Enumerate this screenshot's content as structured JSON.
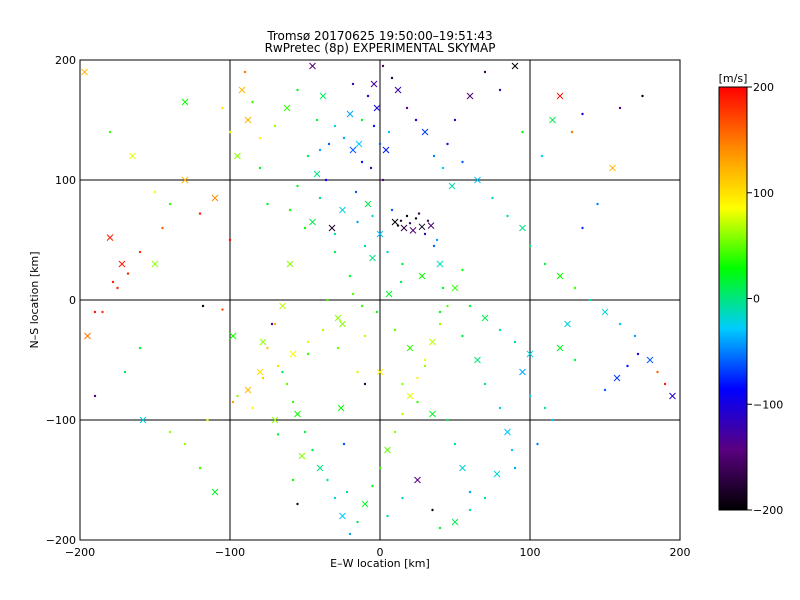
{
  "chart_data": {
    "type": "scatter",
    "title": "Tromsø 20170625 19:50:00–19:51:43",
    "subtitle": "RwPretec (8p) EXPERIMENTAL SKYMAP",
    "xlabel": "E–W location [km]",
    "ylabel": "N–S location [km]",
    "xlim": [
      -200,
      200
    ],
    "ylim": [
      -200,
      200
    ],
    "x_ticks": [
      -200,
      -100,
      0,
      100,
      200
    ],
    "y_ticks": [
      -200,
      -100,
      0,
      100,
      200
    ],
    "x_tick_labels": [
      "−200",
      "−100",
      "0",
      "100",
      "200"
    ],
    "y_tick_labels": [
      "−200",
      "−100",
      "0",
      "100",
      "200"
    ],
    "grid": true,
    "colorbar": {
      "unit": "[m/s]",
      "range": [
        -200,
        200
      ],
      "ticks": [
        200,
        100,
        0,
        -100,
        -200
      ],
      "tick_labels": [
        "200",
        "100",
        "0",
        "−100",
        "−200"
      ],
      "colors": [
        "#000000",
        "#5a0080",
        "#0000ff",
        "#00ccff",
        "#00ff00",
        "#ffff00",
        "#ff8800",
        "#ff0000"
      ]
    },
    "markers": [
      "x",
      "dot"
    ],
    "points": [
      [
        -197,
        190,
        120
      ],
      [
        -190,
        -80,
        -150
      ],
      [
        -185,
        -10,
        180
      ],
      [
        -180,
        52,
        190
      ],
      [
        -178,
        15,
        190
      ],
      [
        -175,
        10,
        185
      ],
      [
        -172,
        30,
        190
      ],
      [
        -168,
        22,
        185
      ],
      [
        -160,
        40,
        180
      ],
      [
        -158,
        -100,
        -20
      ],
      [
        -150,
        90,
        90
      ],
      [
        -140,
        -110,
        60
      ],
      [
        -130,
        165,
        30
      ],
      [
        -120,
        72,
        190
      ],
      [
        -118,
        -5,
        -200
      ],
      [
        -110,
        85,
        140
      ],
      [
        -105,
        -8,
        170
      ],
      [
        -100,
        50,
        200
      ],
      [
        -98,
        -30,
        30
      ],
      [
        -95,
        -80,
        60
      ],
      [
        -90,
        190,
        150
      ],
      [
        -88,
        150,
        120
      ],
      [
        -85,
        165,
        40
      ],
      [
        -80,
        110,
        20
      ],
      [
        -78,
        -35,
        60
      ],
      [
        -75,
        80,
        20
      ],
      [
        -72,
        -20,
        -130
      ],
      [
        -70,
        -100,
        60
      ],
      [
        -68,
        -112,
        20
      ],
      [
        -65,
        -60,
        10
      ],
      [
        -60,
        30,
        60
      ],
      [
        -58,
        -150,
        30
      ],
      [
        -55,
        -170,
        -180
      ],
      [
        -52,
        -130,
        60
      ],
      [
        -50,
        60,
        30
      ],
      [
        -48,
        -45,
        40
      ],
      [
        -45,
        195,
        -150
      ],
      [
        -42,
        150,
        20
      ],
      [
        -40,
        125,
        -40
      ],
      [
        -38,
        170,
        10
      ],
      [
        -36,
        100,
        -90
      ],
      [
        -34,
        130,
        -60
      ],
      [
        -32,
        60,
        -180
      ],
      [
        -30,
        40,
        10
      ],
      [
        -28,
        -40,
        50
      ],
      [
        -26,
        -90,
        30
      ],
      [
        -24,
        -120,
        -60
      ],
      [
        -22,
        -160,
        -10
      ],
      [
        -20,
        155,
        -40
      ],
      [
        -18,
        180,
        -120
      ],
      [
        -16,
        90,
        -60
      ],
      [
        -14,
        130,
        -30
      ],
      [
        -12,
        150,
        20
      ],
      [
        -10,
        -70,
        -170
      ],
      [
        -8,
        80,
        10
      ],
      [
        -6,
        110,
        -120
      ],
      [
        -4,
        145,
        -80
      ],
      [
        -2,
        160,
        -100
      ],
      [
        0,
        130,
        -60
      ],
      [
        2,
        100,
        -150
      ],
      [
        4,
        125,
        -80
      ],
      [
        6,
        140,
        -30
      ],
      [
        8,
        75,
        -60
      ],
      [
        10,
        65,
        -200
      ],
      [
        12,
        62,
        -190
      ],
      [
        14,
        66,
        -180
      ],
      [
        16,
        60,
        -170
      ],
      [
        18,
        70,
        -200
      ],
      [
        20,
        64,
        -160
      ],
      [
        22,
        58,
        -150
      ],
      [
        24,
        68,
        -200
      ],
      [
        26,
        72,
        -170
      ],
      [
        28,
        61,
        -190
      ],
      [
        30,
        55,
        -120
      ],
      [
        32,
        66,
        -160
      ],
      [
        34,
        62,
        -150
      ],
      [
        36,
        45,
        -60
      ],
      [
        38,
        50,
        -40
      ],
      [
        40,
        30,
        -10
      ],
      [
        42,
        10,
        20
      ],
      [
        14,
        15,
        10
      ],
      [
        6,
        5,
        20
      ],
      [
        -2,
        -10,
        30
      ],
      [
        10,
        -25,
        50
      ],
      [
        20,
        -40,
        40
      ],
      [
        30,
        -55,
        60
      ],
      [
        -10,
        -30,
        70
      ],
      [
        0,
        -60,
        90
      ],
      [
        15,
        -70,
        60
      ],
      [
        25,
        -85,
        40
      ],
      [
        35,
        -95,
        20
      ],
      [
        45,
        -100,
        10
      ],
      [
        50,
        -120,
        0
      ],
      [
        55,
        -140,
        -20
      ],
      [
        60,
        -160,
        -40
      ],
      [
        -15,
        -60,
        80
      ],
      [
        -25,
        -20,
        60
      ],
      [
        -35,
        0,
        40
      ],
      [
        -20,
        20,
        20
      ],
      [
        -5,
        35,
        0
      ],
      [
        5,
        40,
        -20
      ],
      [
        15,
        30,
        10
      ],
      [
        28,
        20,
        30
      ],
      [
        40,
        -10,
        20
      ],
      [
        55,
        -30,
        10
      ],
      [
        65,
        -50,
        0
      ],
      [
        70,
        -70,
        -10
      ],
      [
        80,
        -90,
        -20
      ],
      [
        85,
        -110,
        -30
      ],
      [
        90,
        -140,
        -40
      ],
      [
        50,
        150,
        -100
      ],
      [
        60,
        170,
        -150
      ],
      [
        70,
        190,
        -160
      ],
      [
        80,
        175,
        -120
      ],
      [
        90,
        195,
        -200
      ],
      [
        45,
        130,
        -80
      ],
      [
        55,
        115,
        -60
      ],
      [
        65,
        100,
        -30
      ],
      [
        75,
        85,
        -20
      ],
      [
        85,
        70,
        -10
      ],
      [
        95,
        60,
        0
      ],
      [
        100,
        45,
        10
      ],
      [
        110,
        30,
        20
      ],
      [
        120,
        20,
        30
      ],
      [
        130,
        10,
        40
      ],
      [
        140,
        0,
        -10
      ],
      [
        150,
        -10,
        -20
      ],
      [
        160,
        -20,
        -30
      ],
      [
        170,
        -30,
        -40
      ],
      [
        180,
        -50,
        -60
      ],
      [
        185,
        -60,
        160
      ],
      [
        190,
        -70,
        190
      ],
      [
        195,
        -80,
        -110
      ],
      [
        172,
        -45,
        -110
      ],
      [
        165,
        -55,
        -80
      ],
      [
        158,
        -65,
        -70
      ],
      [
        150,
        -75,
        -60
      ],
      [
        130,
        -50,
        10
      ],
      [
        120,
        -40,
        20
      ],
      [
        110,
        -90,
        -10
      ],
      [
        100,
        -80,
        -20
      ],
      [
        95,
        -60,
        -40
      ],
      [
        105,
        -120,
        -50
      ],
      [
        115,
        -100,
        -30
      ],
      [
        125,
        -20,
        -20
      ],
      [
        135,
        60,
        -70
      ],
      [
        145,
        80,
        -50
      ],
      [
        155,
        110,
        120
      ],
      [
        160,
        160,
        -130
      ],
      [
        175,
        170,
        -200
      ],
      [
        120,
        170,
        190
      ],
      [
        128,
        140,
        150
      ],
      [
        135,
        155,
        -110
      ],
      [
        115,
        150,
        10
      ],
      [
        95,
        140,
        30
      ],
      [
        108,
        120,
        -20
      ],
      [
        -130,
        100,
        120
      ],
      [
        -140,
        80,
        40
      ],
      [
        -145,
        60,
        160
      ],
      [
        -150,
        30,
        60
      ],
      [
        -160,
        -40,
        20
      ],
      [
        -170,
        -60,
        10
      ],
      [
        -165,
        120,
        80
      ],
      [
        -180,
        140,
        40
      ],
      [
        -190,
        -10,
        190
      ],
      [
        -195,
        -30,
        150
      ],
      [
        -130,
        -120,
        60
      ],
      [
        -120,
        -140,
        40
      ],
      [
        -110,
        -160,
        20
      ],
      [
        -115,
        -100,
        80
      ],
      [
        -85,
        -90,
        90
      ],
      [
        -80,
        -60,
        100
      ],
      [
        -75,
        -40,
        110
      ],
      [
        -70,
        -20,
        120
      ],
      [
        -65,
        -5,
        70
      ],
      [
        -62,
        -70,
        50
      ],
      [
        -58,
        -85,
        40
      ],
      [
        -55,
        -95,
        30
      ],
      [
        -50,
        -110,
        20
      ],
      [
        -45,
        -125,
        10
      ],
      [
        -40,
        -140,
        0
      ],
      [
        -35,
        -150,
        -10
      ],
      [
        -30,
        -165,
        -20
      ],
      [
        -25,
        -180,
        -30
      ],
      [
        -20,
        -195,
        -40
      ],
      [
        -15,
        -185,
        10
      ],
      [
        -10,
        -170,
        20
      ],
      [
        -5,
        -155,
        30
      ],
      [
        0,
        -140,
        40
      ],
      [
        5,
        -125,
        50
      ],
      [
        10,
        -110,
        60
      ],
      [
        15,
        -95,
        70
      ],
      [
        20,
        -80,
        80
      ],
      [
        25,
        -65,
        90
      ],
      [
        30,
        -50,
        80
      ],
      [
        35,
        -35,
        70
      ],
      [
        40,
        -20,
        60
      ],
      [
        45,
        -5,
        50
      ],
      [
        50,
        10,
        40
      ],
      [
        55,
        25,
        30
      ],
      [
        -5,
        70,
        -20
      ],
      [
        0,
        55,
        -30
      ],
      [
        -10,
        45,
        -10
      ],
      [
        -15,
        65,
        -40
      ],
      [
        -25,
        75,
        -20
      ],
      [
        -30,
        55,
        -10
      ],
      [
        -40,
        85,
        0
      ],
      [
        -45,
        65,
        10
      ],
      [
        -55,
        95,
        20
      ],
      [
        -60,
        75,
        30
      ],
      [
        -95,
        120,
        60
      ],
      [
        -100,
        140,
        80
      ],
      [
        -105,
        160,
        100
      ],
      [
        -92,
        175,
        120
      ],
      [
        -80,
        135,
        90
      ],
      [
        -70,
        145,
        60
      ],
      [
        -62,
        160,
        40
      ],
      [
        -55,
        175,
        20
      ],
      [
        -48,
        120,
        10
      ],
      [
        -42,
        105,
        0
      ],
      [
        -30,
        145,
        -20
      ],
      [
        -24,
        135,
        -40
      ],
      [
        -18,
        125,
        -60
      ],
      [
        -12,
        115,
        -80
      ],
      [
        -8,
        170,
        -100
      ],
      [
        -4,
        180,
        -130
      ],
      [
        2,
        195,
        -160
      ],
      [
        8,
        185,
        -180
      ],
      [
        12,
        175,
        -120
      ],
      [
        18,
        160,
        -140
      ],
      [
        24,
        150,
        -90
      ],
      [
        30,
        140,
        -70
      ],
      [
        36,
        120,
        -50
      ],
      [
        42,
        110,
        -30
      ],
      [
        48,
        95,
        -10
      ],
      [
        -12,
        -5,
        40
      ],
      [
        -18,
        5,
        50
      ],
      [
        -28,
        -15,
        60
      ],
      [
        -38,
        -25,
        70
      ],
      [
        -48,
        -35,
        80
      ],
      [
        -58,
        -45,
        90
      ],
      [
        -68,
        -55,
        100
      ],
      [
        -78,
        -65,
        110
      ],
      [
        -88,
        -75,
        120
      ],
      [
        -98,
        -85,
        130
      ],
      [
        60,
        -5,
        20
      ],
      [
        70,
        -15,
        10
      ],
      [
        80,
        -25,
        0
      ],
      [
        90,
        -35,
        -10
      ],
      [
        100,
        -45,
        -20
      ],
      [
        5,
        -180,
        -10
      ],
      [
        15,
        -165,
        -20
      ],
      [
        25,
        -150,
        -140
      ],
      [
        35,
        -175,
        -190
      ],
      [
        40,
        -190,
        20
      ],
      [
        50,
        -185,
        10
      ],
      [
        60,
        -175,
        0
      ],
      [
        70,
        -165,
        -10
      ],
      [
        78,
        -145,
        -20
      ],
      [
        88,
        -125,
        -30
      ]
    ]
  }
}
